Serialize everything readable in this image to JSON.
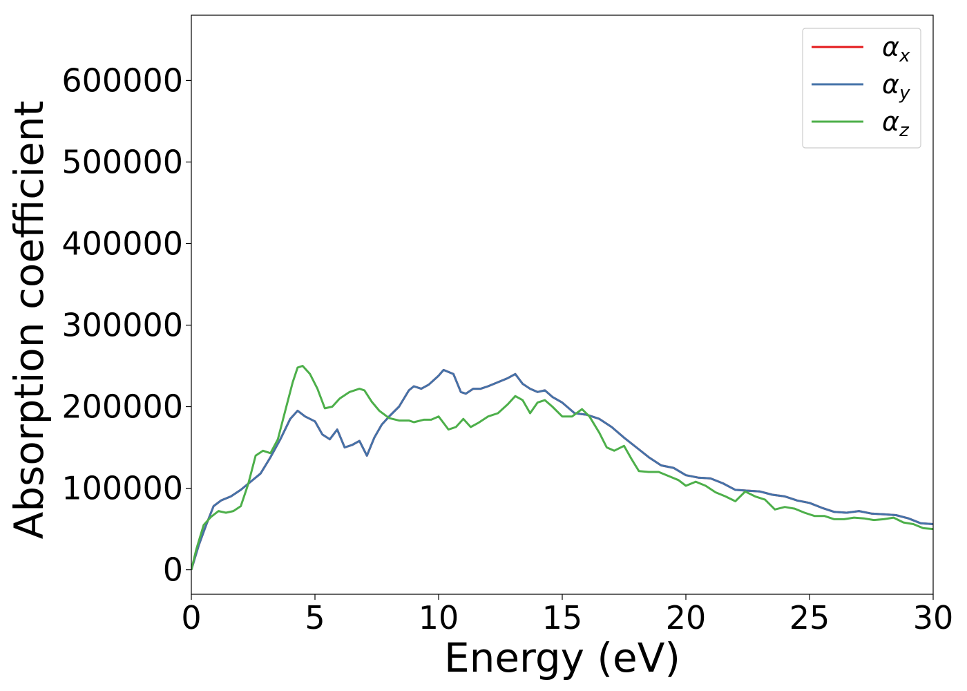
{
  "chart_data": {
    "type": "line",
    "xlabel": "Energy (eV)",
    "ylabel": "Absorption coefficient",
    "xlim": [
      0,
      30
    ],
    "ylim": [
      -30000,
      680000
    ],
    "xticks": [
      0,
      5,
      10,
      15,
      20,
      25,
      30
    ],
    "xtick_labels": [
      "0",
      "5",
      "10",
      "15",
      "20",
      "25",
      "30"
    ],
    "yticks": [
      0,
      100000,
      200000,
      300000,
      400000,
      500000,
      600000
    ],
    "ytick_labels": [
      "0",
      "100000",
      "200000",
      "300000",
      "400000",
      "500000",
      "600000"
    ],
    "grid": false,
    "legend_position": "top-right",
    "series": [
      {
        "name": "α",
        "sub": "x",
        "color": "#e41a1c",
        "x": [
          0,
          0.3,
          0.6,
          0.9,
          1.2,
          1.6,
          2.0,
          2.4,
          2.8,
          3.2,
          3.6,
          4.0,
          4.3,
          4.6,
          5.0,
          5.3,
          5.6,
          5.9,
          6.2,
          6.5,
          6.8,
          7.1,
          7.4,
          7.7,
          8.0,
          8.4,
          8.8,
          9.0,
          9.3,
          9.6,
          10.0,
          10.2,
          10.6,
          10.9,
          11.1,
          11.4,
          11.7,
          12.0,
          12.4,
          12.8,
          13.1,
          13.4,
          13.7,
          14.0,
          14.3,
          14.6,
          15.0,
          15.5,
          16.0,
          16.5,
          17.0,
          17.5,
          18.0,
          18.5,
          19.0,
          19.5,
          20.0,
          20.5,
          21.0,
          21.5,
          22.0,
          22.5,
          23.0,
          23.5,
          24.0,
          24.5,
          25.0,
          25.5,
          26.0,
          26.5,
          27.0,
          27.5,
          28.0,
          28.5,
          29.0,
          29.5,
          30.0
        ],
        "y": [
          0,
          30000,
          55000,
          78000,
          85000,
          90000,
          98000,
          108000,
          118000,
          138000,
          160000,
          185000,
          195000,
          188000,
          182000,
          166000,
          160000,
          172000,
          150000,
          153000,
          158000,
          140000,
          162000,
          178000,
          188000,
          200000,
          220000,
          225000,
          222000,
          227000,
          238000,
          245000,
          240000,
          218000,
          216000,
          222000,
          222000,
          225000,
          230000,
          235000,
          240000,
          228000,
          222000,
          218000,
          220000,
          212000,
          205000,
          192000,
          190000,
          185000,
          175000,
          162000,
          150000,
          138000,
          128000,
          125000,
          116000,
          113000,
          112000,
          106000,
          98000,
          97000,
          96000,
          92000,
          90000,
          85000,
          82000,
          76000,
          71000,
          70000,
          72000,
          69000,
          68000,
          67000,
          63000,
          57000,
          56000
        ]
      },
      {
        "name": "α",
        "sub": "y",
        "color": "#4472a8",
        "x": [
          0,
          0.3,
          0.6,
          0.9,
          1.2,
          1.6,
          2.0,
          2.4,
          2.8,
          3.2,
          3.6,
          4.0,
          4.3,
          4.6,
          5.0,
          5.3,
          5.6,
          5.9,
          6.2,
          6.5,
          6.8,
          7.1,
          7.4,
          7.7,
          8.0,
          8.4,
          8.8,
          9.0,
          9.3,
          9.6,
          10.0,
          10.2,
          10.6,
          10.9,
          11.1,
          11.4,
          11.7,
          12.0,
          12.4,
          12.8,
          13.1,
          13.4,
          13.7,
          14.0,
          14.3,
          14.6,
          15.0,
          15.5,
          16.0,
          16.5,
          17.0,
          17.5,
          18.0,
          18.5,
          19.0,
          19.5,
          20.0,
          20.5,
          21.0,
          21.5,
          22.0,
          22.5,
          23.0,
          23.5,
          24.0,
          24.5,
          25.0,
          25.5,
          26.0,
          26.5,
          27.0,
          27.5,
          28.0,
          28.5,
          29.0,
          29.5,
          30.0
        ],
        "y": [
          0,
          30000,
          55000,
          78000,
          85000,
          90000,
          98000,
          108000,
          118000,
          138000,
          160000,
          185000,
          195000,
          188000,
          182000,
          166000,
          160000,
          172000,
          150000,
          153000,
          158000,
          140000,
          162000,
          178000,
          188000,
          200000,
          220000,
          225000,
          222000,
          227000,
          238000,
          245000,
          240000,
          218000,
          216000,
          222000,
          222000,
          225000,
          230000,
          235000,
          240000,
          228000,
          222000,
          218000,
          220000,
          212000,
          205000,
          192000,
          190000,
          185000,
          175000,
          162000,
          150000,
          138000,
          128000,
          125000,
          116000,
          113000,
          112000,
          106000,
          98000,
          97000,
          96000,
          92000,
          90000,
          85000,
          82000,
          76000,
          71000,
          70000,
          72000,
          69000,
          68000,
          67000,
          63000,
          57000,
          56000
        ]
      },
      {
        "name": "α",
        "sub": "z",
        "color": "#4daf4a",
        "x": [
          0,
          0.2,
          0.5,
          0.8,
          1.1,
          1.4,
          1.7,
          2.0,
          2.3,
          2.6,
          2.9,
          3.2,
          3.5,
          3.8,
          4.1,
          4.3,
          4.5,
          4.8,
          5.1,
          5.4,
          5.7,
          6.0,
          6.4,
          6.8,
          7.0,
          7.3,
          7.6,
          8.0,
          8.4,
          8.8,
          9.0,
          9.4,
          9.7,
          10.0,
          10.4,
          10.7,
          11.0,
          11.3,
          11.6,
          12.0,
          12.4,
          12.8,
          13.1,
          13.4,
          13.7,
          14.0,
          14.3,
          14.6,
          15.0,
          15.4,
          15.8,
          16.1,
          16.5,
          16.8,
          17.1,
          17.5,
          17.8,
          18.1,
          18.5,
          18.9,
          19.3,
          19.7,
          20.0,
          20.4,
          20.8,
          21.2,
          21.6,
          22.0,
          22.4,
          22.8,
          23.2,
          23.6,
          24.0,
          24.4,
          24.8,
          25.2,
          25.6,
          26.0,
          26.4,
          26.8,
          27.2,
          27.6,
          28.0,
          28.4,
          28.8,
          29.2,
          29.6,
          30.0
        ],
        "y": [
          0,
          25000,
          55000,
          65000,
          72000,
          70000,
          72000,
          78000,
          105000,
          140000,
          146000,
          143000,
          160000,
          195000,
          230000,
          248000,
          250000,
          240000,
          222000,
          198000,
          200000,
          210000,
          218000,
          222000,
          220000,
          206000,
          195000,
          186000,
          183000,
          183000,
          181000,
          184000,
          184000,
          188000,
          172000,
          175000,
          185000,
          175000,
          180000,
          188000,
          192000,
          203000,
          213000,
          208000,
          192000,
          205000,
          208000,
          200000,
          188000,
          188000,
          197000,
          188000,
          168000,
          150000,
          146000,
          152000,
          136000,
          121000,
          120000,
          120000,
          115000,
          110000,
          103000,
          108000,
          103000,
          95000,
          90000,
          84000,
          96000,
          90000,
          86000,
          74000,
          77000,
          75000,
          70000,
          66000,
          66000,
          62000,
          62000,
          64000,
          63000,
          61000,
          62000,
          64000,
          58000,
          56000,
          51000,
          50000
        ]
      }
    ]
  }
}
